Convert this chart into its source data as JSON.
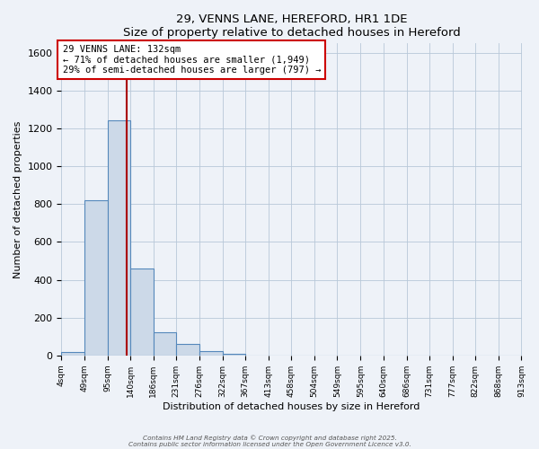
{
  "title": "29, VENNS LANE, HEREFORD, HR1 1DE",
  "subtitle": "Size of property relative to detached houses in Hereford",
  "xlabel": "Distribution of detached houses by size in Hereford",
  "ylabel": "Number of detached properties",
  "bin_labels": [
    "4sqm",
    "49sqm",
    "95sqm",
    "140sqm",
    "186sqm",
    "231sqm",
    "276sqm",
    "322sqm",
    "367sqm",
    "413sqm",
    "458sqm",
    "504sqm",
    "549sqm",
    "595sqm",
    "640sqm",
    "686sqm",
    "731sqm",
    "777sqm",
    "822sqm",
    "868sqm",
    "913sqm"
  ],
  "bar_values": [
    20,
    820,
    1245,
    460,
    125,
    60,
    22,
    10,
    0,
    0,
    0,
    0,
    0,
    0,
    0,
    0,
    0,
    0,
    0,
    0
  ],
  "bin_edges": [
    4,
    49,
    95,
    140,
    186,
    231,
    276,
    322,
    367,
    413,
    458,
    504,
    549,
    595,
    640,
    686,
    731,
    777,
    822,
    868,
    913
  ],
  "property_size": 132,
  "annotation_title": "29 VENNS LANE: 132sqm",
  "annotation_line1": "← 71% of detached houses are smaller (1,949)",
  "annotation_line2": "29% of semi-detached houses are larger (797) →",
  "bar_fill_color": "#ccd9e8",
  "bar_edge_color": "#5588bb",
  "vline_color": "#aa0000",
  "annotation_box_edge": "#cc0000",
  "background_color": "#eef2f8",
  "ylim": [
    0,
    1650
  ],
  "footer_line1": "Contains HM Land Registry data © Crown copyright and database right 2025.",
  "footer_line2": "Contains public sector information licensed under the Open Government Licence v3.0."
}
